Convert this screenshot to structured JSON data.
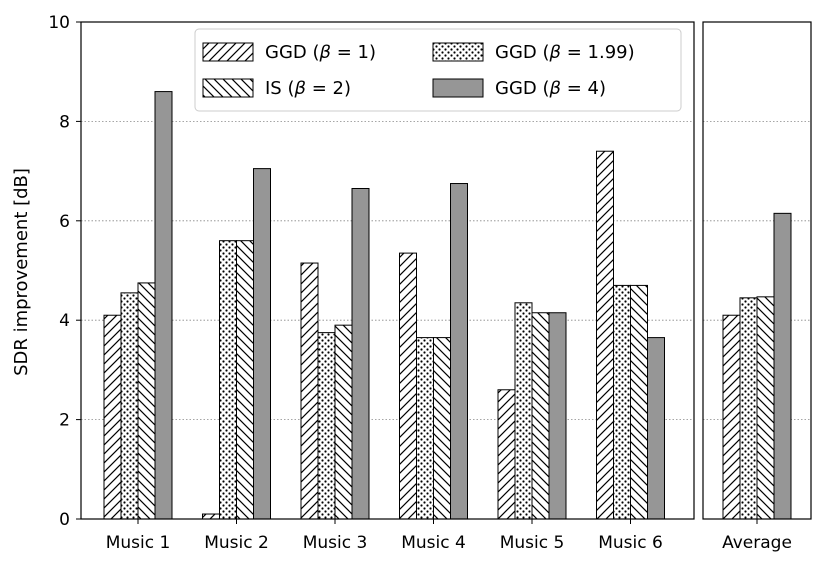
{
  "chart_data": [
    {
      "type": "bar",
      "categories": [
        "Music 1",
        "Music 2",
        "Music 3",
        "Music 4",
        "Music 5",
        "Music 6"
      ],
      "series": [
        {
          "name": "GGD (β = 1)",
          "values": [
            4.1,
            0.1,
            5.15,
            5.35,
            2.6,
            7.4
          ],
          "pattern": "hatch-right"
        },
        {
          "name": "GGD (β = 1.99)",
          "values": [
            4.55,
            5.6,
            3.75,
            3.65,
            4.35,
            4.7
          ],
          "pattern": "dots"
        },
        {
          "name": "IS (β = 2)",
          "values": [
            4.75,
            5.6,
            3.9,
            3.65,
            4.15,
            4.7
          ],
          "pattern": "hatch-left"
        },
        {
          "name": "GGD (β = 4)",
          "values": [
            8.6,
            7.05,
            6.65,
            6.75,
            4.15,
            3.65
          ],
          "pattern": "solid",
          "color": "#969696"
        }
      ],
      "ylabel": "SDR improvement [dB]",
      "ylim": [
        0,
        10
      ],
      "yticks": [
        0,
        2,
        4,
        6,
        8,
        10
      ],
      "grid": "y-dotted",
      "legend": "top"
    },
    {
      "type": "bar",
      "categories": [
        "Average"
      ],
      "series": [
        {
          "name": "GGD (β = 1)",
          "values": [
            4.1
          ]
        },
        {
          "name": "GGD (β = 1.99)",
          "values": [
            4.45
          ]
        },
        {
          "name": "IS (β = 2)",
          "values": [
            4.47
          ]
        },
        {
          "name": "GGD (β = 4)",
          "values": [
            6.15
          ]
        }
      ],
      "ylim": [
        0,
        10
      ],
      "grid": "y-dotted"
    }
  ],
  "legend": {
    "entries": [
      {
        "prefix": "GGD (",
        "symbol": "β",
        "suffix": " = 1)"
      },
      {
        "prefix": "IS (",
        "symbol": "β",
        "suffix": " = 2)"
      },
      {
        "prefix": "GGD (",
        "symbol": "β",
        "suffix": " = 1.99)"
      },
      {
        "prefix": "GGD (",
        "symbol": "β",
        "suffix": " = 4)"
      }
    ],
    "series_index": [
      0,
      2,
      1,
      3
    ]
  }
}
